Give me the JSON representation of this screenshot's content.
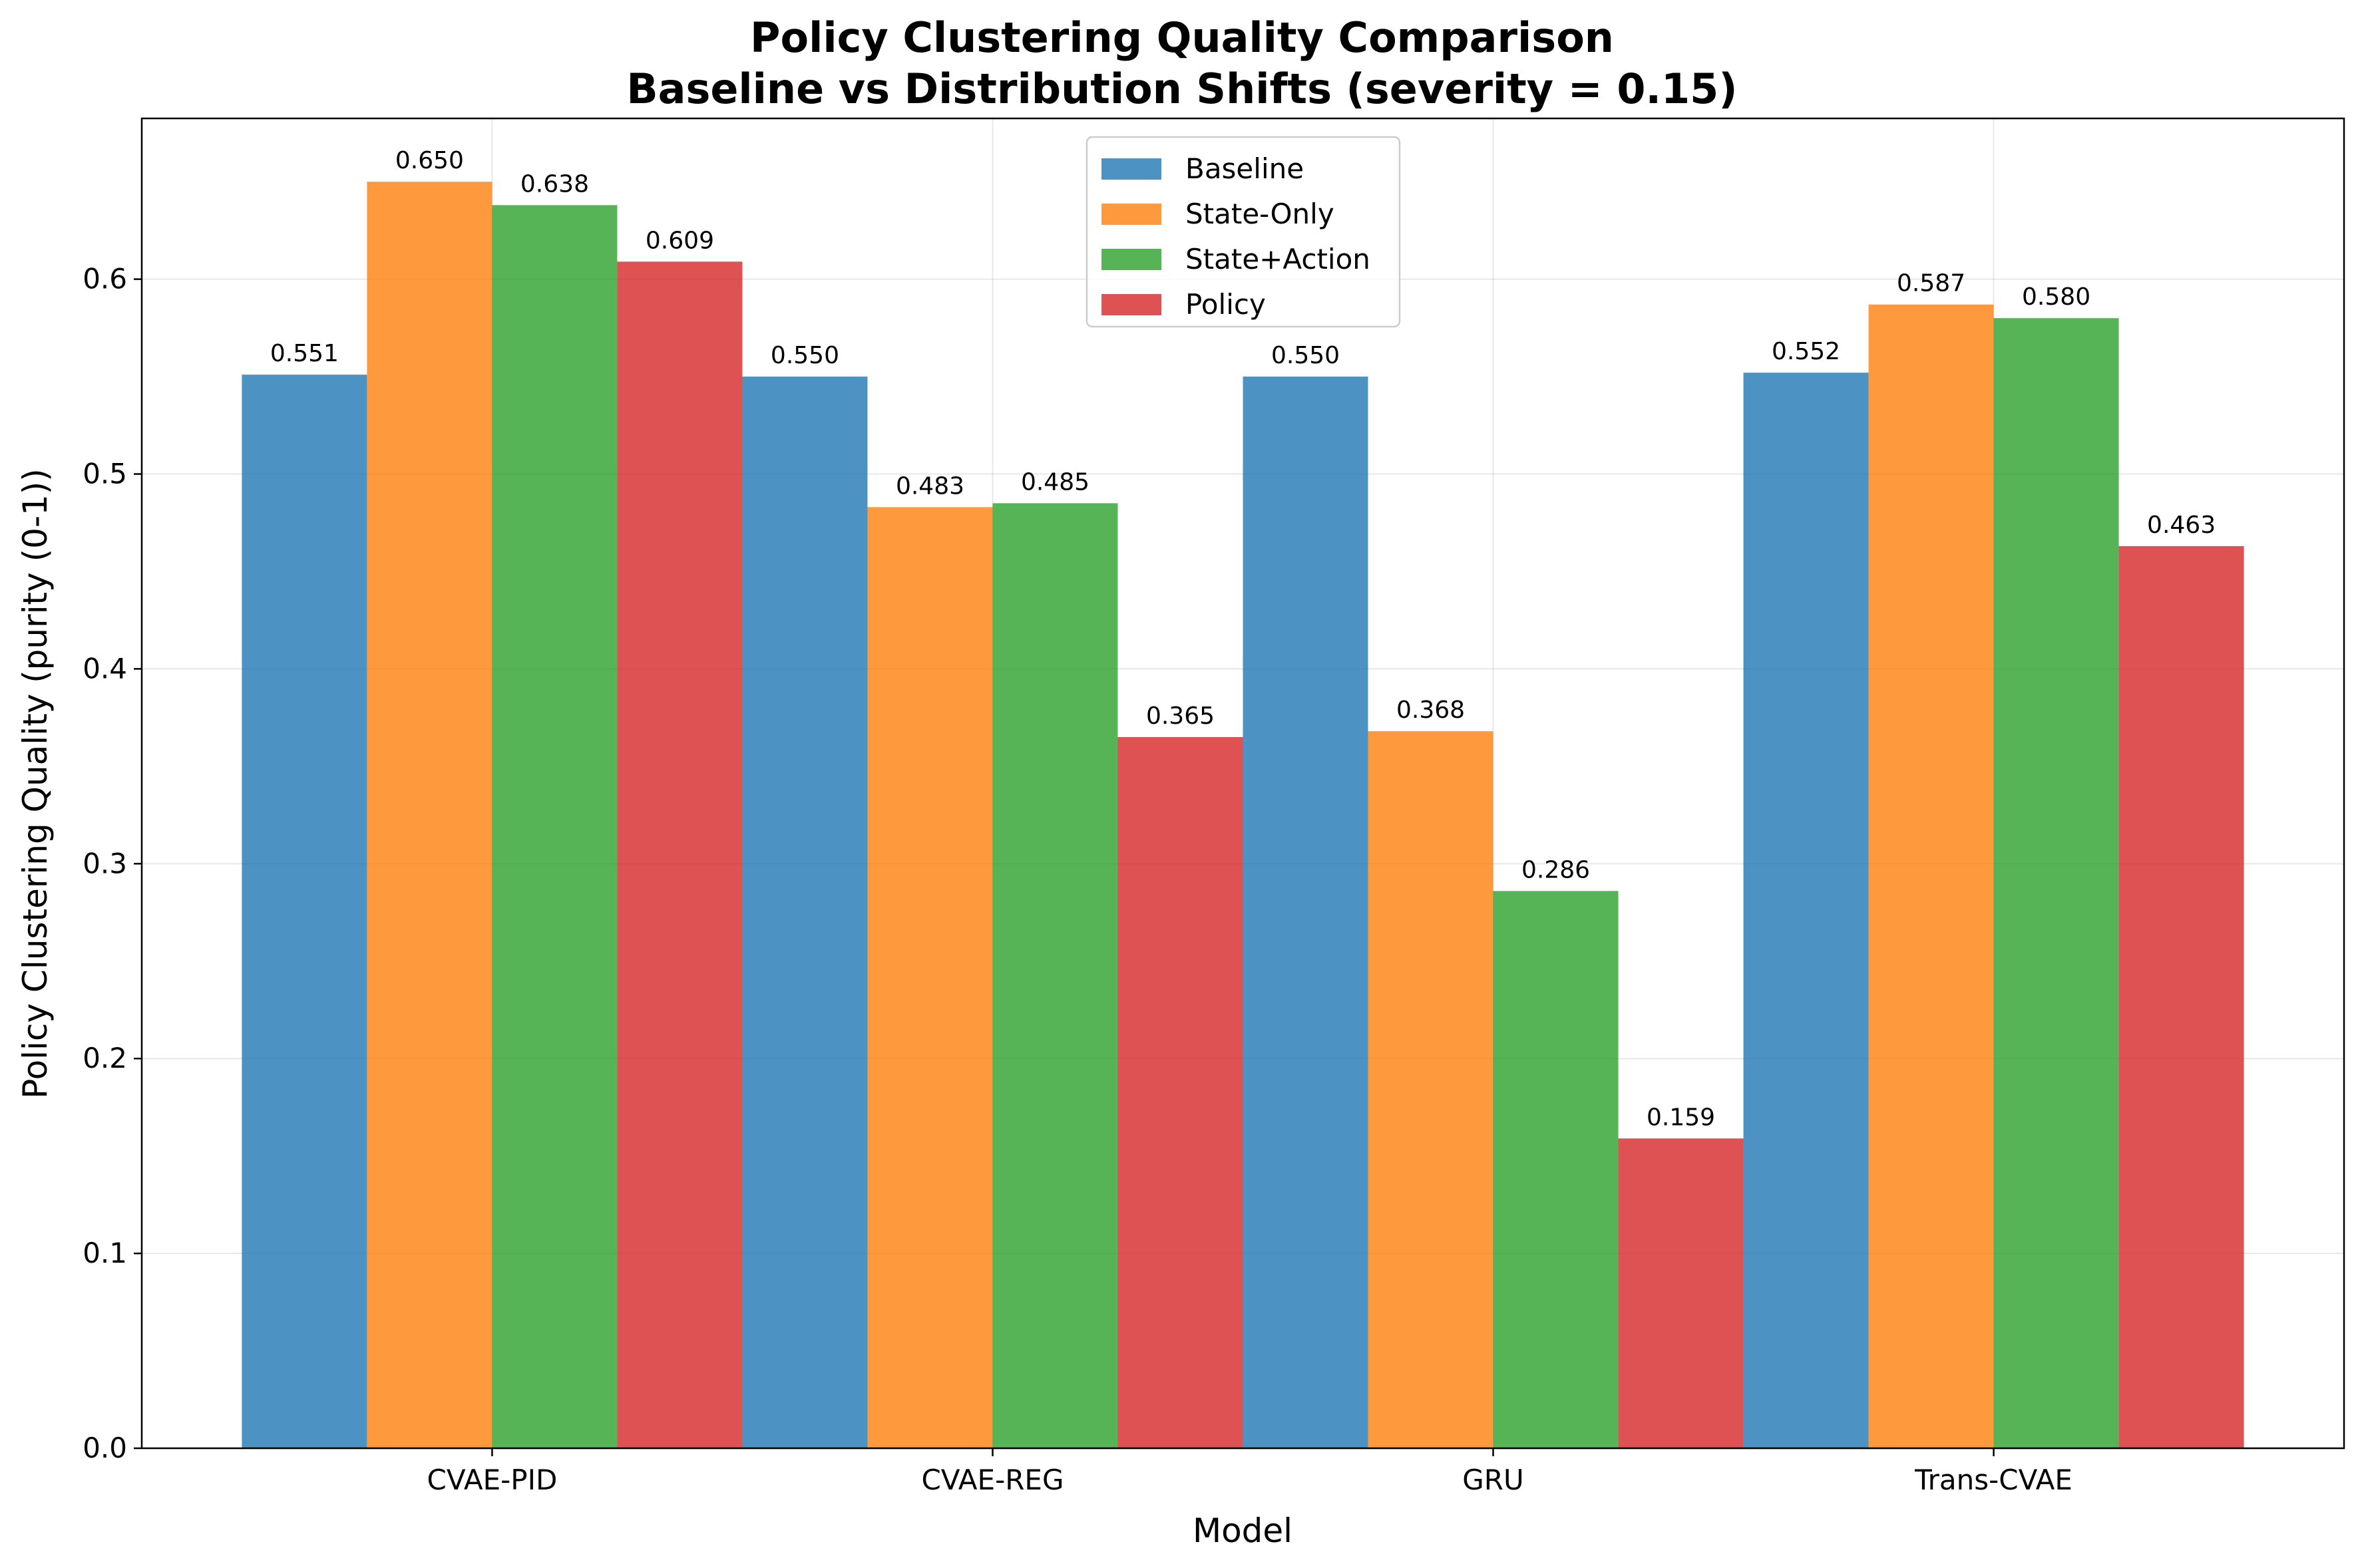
{
  "chart_data": {
    "type": "bar",
    "title_lines": [
      "Policy Clustering Quality Comparison",
      "Baseline vs Distribution Shifts (severity = 0.15)"
    ],
    "xlabel": "Model",
    "ylabel": "Policy Clustering Quality (purity (0-1))",
    "categories": [
      "CVAE-PID",
      "CVAE-REG",
      "GRU",
      "Trans-CVAE"
    ],
    "series": [
      {
        "name": "Baseline",
        "color": "#1f77b4",
        "values": [
          0.551,
          0.55,
          0.55,
          0.552
        ]
      },
      {
        "name": "State-Only",
        "color": "#ff7f0e",
        "values": [
          0.65,
          0.483,
          0.368,
          0.587
        ]
      },
      {
        "name": "State+Action",
        "color": "#2ca02c",
        "values": [
          0.638,
          0.485,
          0.286,
          0.58
        ]
      },
      {
        "name": "Policy",
        "color": "#d62728",
        "values": [
          0.609,
          0.365,
          0.159,
          0.463
        ]
      }
    ],
    "ylim": [
      0,
      0.6825
    ],
    "yticks": [
      0.0,
      0.1,
      0.2,
      0.3,
      0.4,
      0.5,
      0.6
    ],
    "ytick_labels": [
      "0.0",
      "0.1",
      "0.2",
      "0.3",
      "0.4",
      "0.5",
      "0.6"
    ],
    "grid": true,
    "legend_position": "upper center"
  }
}
